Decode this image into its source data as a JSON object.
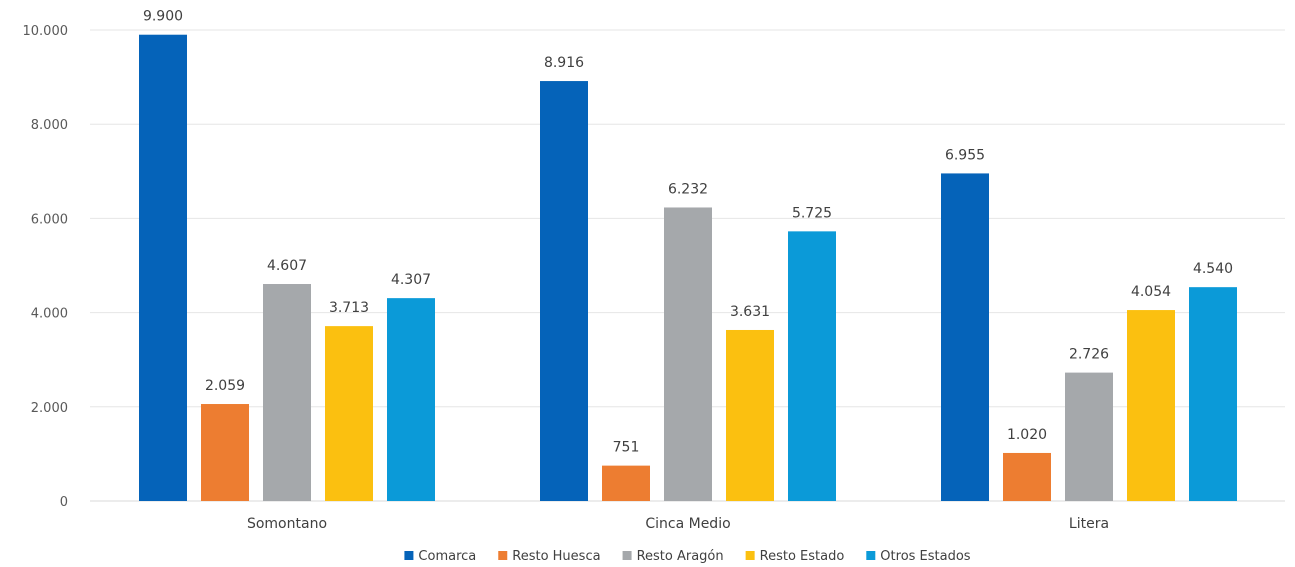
{
  "chart_data": {
    "type": "bar",
    "title": "",
    "xlabel": "",
    "ylabel": "",
    "categories": [
      "Somontano",
      "Cinca Medio",
      "Litera"
    ],
    "series": [
      {
        "name": "Comarca",
        "color": "#0563b9",
        "values": [
          9900,
          8916,
          6955
        ],
        "labels": [
          "9.900",
          "8.916",
          "6.955"
        ]
      },
      {
        "name": "Resto Huesca",
        "color": "#ed7d31",
        "values": [
          2059,
          751,
          1020
        ],
        "labels": [
          "2.059",
          "751",
          "1.020"
        ]
      },
      {
        "name": "Resto Aragón",
        "color": "#a5a8ab",
        "values": [
          4607,
          6232,
          2726
        ],
        "labels": [
          "4.607",
          "6.232",
          "2.726"
        ]
      },
      {
        "name": "Resto Estado",
        "color": "#fbc010",
        "values": [
          3713,
          3631,
          4054
        ],
        "labels": [
          "3.713",
          "3.631",
          "4.054"
        ]
      },
      {
        "name": "Otros Estados",
        "color": "#0b9ad8",
        "values": [
          4307,
          5725,
          4540
        ],
        "labels": [
          "4.307",
          "5.725",
          "4.540"
        ]
      }
    ],
    "ylim": [
      0,
      10000
    ],
    "yticks": [
      0,
      2000,
      4000,
      6000,
      8000,
      10000
    ],
    "ytick_labels": [
      "0",
      "2.000",
      "4.000",
      "6.000",
      "8.000",
      "10.000"
    ],
    "grid": true,
    "legend_position": "bottom"
  }
}
